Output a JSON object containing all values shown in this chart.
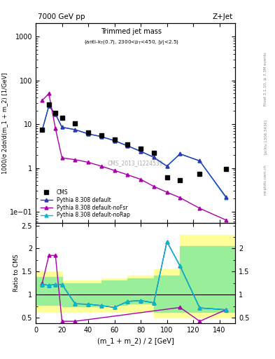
{
  "title_top": "7000 GeV pp",
  "title_right": "Z+Jet",
  "watermark": "CMS_2013_I1224539",
  "ylabel_main": "1000/σ 2dσ/d(m_1 + m_2) [1/GeV]",
  "ylabel_ratio": "Ratio to CMS",
  "xlabel": "(m_1 + m_2) / 2 [GeV]",
  "right_label1": "Rivet 3.1.10, ≥ 3.3M events",
  "right_label2": "[arXiv:1306.3436]",
  "right_label3": "mcplots.cern.ch",
  "cms_x": [
    5,
    10,
    15,
    20,
    30,
    40,
    50,
    60,
    70,
    80,
    90,
    100,
    110,
    125,
    145
  ],
  "cms_y": [
    7.5,
    28.0,
    18.0,
    14.0,
    10.5,
    6.5,
    5.5,
    4.5,
    3.5,
    2.8,
    2.2,
    0.62,
    0.52,
    0.72,
    0.95
  ],
  "py_default_x": [
    5,
    10,
    15,
    20,
    30,
    40,
    50,
    60,
    70,
    80,
    90,
    100,
    110,
    125,
    145
  ],
  "py_default_y": [
    7.5,
    26.0,
    17.0,
    8.5,
    7.5,
    6.0,
    5.2,
    4.2,
    3.2,
    2.4,
    1.75,
    1.1,
    2.1,
    1.45,
    0.22
  ],
  "py_noFsr_x": [
    5,
    10,
    15,
    20,
    30,
    40,
    50,
    60,
    70,
    80,
    90,
    100,
    110,
    125,
    145
  ],
  "py_noFsr_y": [
    35.0,
    50.0,
    8.0,
    1.7,
    1.55,
    1.35,
    1.1,
    0.88,
    0.7,
    0.55,
    0.38,
    0.28,
    0.21,
    0.12,
    0.065
  ],
  "py_noRap_x": [
    5,
    10,
    15,
    20,
    30,
    40,
    50,
    60,
    70,
    80,
    90,
    100,
    110,
    125,
    145
  ],
  "py_noRap_y": [
    7.5,
    26.0,
    17.0,
    8.5,
    7.5,
    6.0,
    5.2,
    4.2,
    3.2,
    2.4,
    1.75,
    1.1,
    2.1,
    1.45,
    0.21
  ],
  "ratio_default_x": [
    5,
    10,
    15,
    20,
    30,
    40,
    50,
    60,
    70,
    80,
    90,
    100,
    110,
    125,
    145
  ],
  "ratio_default_y": [
    1.22,
    1.2,
    1.22,
    1.22,
    0.8,
    0.79,
    0.76,
    0.72,
    0.85,
    0.87,
    0.82,
    2.15,
    1.62,
    0.71,
    0.67
  ],
  "ratio_noFsr_x": [
    5,
    10,
    15,
    20,
    30,
    110,
    125,
    145
  ],
  "ratio_noFsr_y": [
    1.25,
    1.85,
    1.85,
    0.42,
    0.42,
    0.72,
    0.42,
    0.67
  ],
  "ratio_noRap_x": [
    5,
    10,
    15,
    20,
    30,
    40,
    50,
    60,
    70,
    80,
    90,
    100,
    110,
    125,
    145
  ],
  "ratio_noRap_y": [
    1.22,
    1.2,
    1.22,
    1.22,
    0.8,
    0.79,
    0.76,
    0.72,
    0.85,
    0.87,
    0.82,
    2.15,
    1.62,
    0.71,
    0.67
  ],
  "band_x_edges": [
    0,
    10,
    20,
    30,
    50,
    70,
    90,
    110,
    130,
    155
  ],
  "band_yellow_lo": [
    0.62,
    0.62,
    0.62,
    0.62,
    0.62,
    0.62,
    0.5,
    0.5,
    0.5
  ],
  "band_yellow_hi": [
    1.5,
    1.5,
    1.3,
    1.3,
    1.35,
    1.42,
    1.55,
    2.3,
    2.3
  ],
  "band_green_lo": [
    0.78,
    0.78,
    0.75,
    0.75,
    0.78,
    0.8,
    0.62,
    0.62,
    0.62
  ],
  "band_green_hi": [
    1.38,
    1.38,
    1.25,
    1.25,
    1.3,
    1.35,
    1.42,
    2.05,
    2.05
  ],
  "color_default": "#3333bb",
  "color_noFsr": "#aa00aa",
  "color_noRap": "#00bbcc",
  "color_cms": "black",
  "color_yellow": "#ffff99",
  "color_green": "#99ee99",
  "ylim_main": [
    0.055,
    2000
  ],
  "ylim_ratio": [
    0.38,
    2.55
  ],
  "xlim": [
    0,
    152
  ]
}
